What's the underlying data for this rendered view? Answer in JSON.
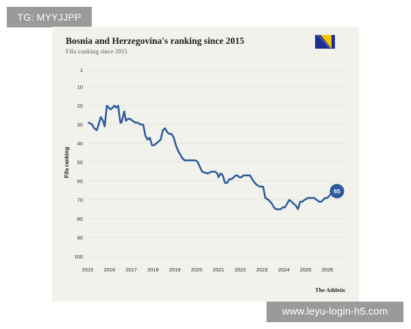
{
  "watermark_top": "TG: MYYJJPP",
  "watermark_bottom": "www.leyu-login-h5.com",
  "brand": "The Athletic",
  "colors": {
    "line": "#2c5a9a",
    "card": "#f2f2ec",
    "flag_blue": "#1f2e8c",
    "flag_yellow": "#f5c400"
  },
  "chart_data": {
    "type": "line",
    "title": "Bosnia and Herzegovina's ranking since 2015",
    "subtitle": "Fifa ranking since 2015",
    "xlabel": "",
    "ylabel": "Fifa ranking",
    "y_inverted": true,
    "ylim": [
      1,
      100
    ],
    "y_ticks": [
      1,
      10,
      20,
      30,
      40,
      50,
      60,
      70,
      80,
      90,
      100
    ],
    "x_ticks": [
      "2015",
      "2016",
      "2017",
      "2018",
      "2019",
      "2020",
      "2021",
      "2022",
      "2023",
      "2024",
      "2025",
      "2026"
    ],
    "xlim": [
      2015,
      2026.85
    ],
    "grid": "horizontal",
    "end_label": "65",
    "series": [
      {
        "x": [
          2015.05,
          2015.2,
          2015.3,
          2015.42,
          2015.5,
          2015.6,
          2015.7,
          2015.78,
          2015.88,
          2016.05,
          2016.15,
          2016.22,
          2016.3,
          2016.4,
          2016.5,
          2016.55,
          2016.68,
          2016.75,
          2016.85,
          2016.95,
          2017.05,
          2017.18,
          2017.3,
          2017.42,
          2017.55,
          2017.65,
          2017.75,
          2017.85,
          2017.95,
          2018.05,
          2018.15,
          2018.25,
          2018.35,
          2018.45,
          2018.55,
          2018.65,
          2018.75,
          2018.85,
          2018.95,
          2019.05,
          2019.15,
          2019.25,
          2019.35,
          2019.45,
          2019.55,
          2019.65,
          2019.75,
          2019.85,
          2019.95,
          2020.05,
          2020.25,
          2020.5,
          2020.7,
          2020.85,
          2020.95,
          2021.0,
          2021.1,
          2021.2,
          2021.3,
          2021.4,
          2021.5,
          2021.6,
          2021.7,
          2021.8,
          2021.88,
          2021.95,
          2022.05,
          2022.15,
          2022.3,
          2022.45,
          2022.6,
          2022.75,
          2022.9,
          2023.05,
          2023.15,
          2023.3,
          2023.45,
          2023.55,
          2023.65,
          2023.75,
          2023.85,
          2023.95,
          2024.05,
          2024.15,
          2024.25,
          2024.35,
          2024.45,
          2024.55,
          2024.65,
          2024.75,
          2024.85,
          2024.95,
          2025.1,
          2025.25,
          2025.4,
          2025.5,
          2025.62,
          2025.72,
          2025.8,
          2025.9,
          2026.0,
          2026.08,
          2026.15,
          2026.22
        ],
        "y": [
          29,
          30,
          32,
          33,
          30,
          26,
          28,
          31,
          20,
          22,
          21,
          20,
          21,
          20,
          29,
          29,
          23,
          28,
          27,
          27,
          28,
          29,
          29,
          30,
          30,
          36,
          38,
          37,
          41,
          41,
          40,
          39,
          38,
          33,
          32,
          34,
          35,
          35,
          37,
          41,
          44,
          46,
          48,
          49,
          49,
          49,
          49,
          49,
          49,
          50,
          55,
          56,
          55,
          55,
          56,
          58,
          56,
          57,
          61,
          61,
          59,
          59,
          58,
          57,
          57,
          58,
          58,
          57,
          57,
          57,
          60,
          62,
          63,
          63,
          69,
          70,
          72,
          74,
          75,
          75,
          75,
          74,
          74,
          72,
          70,
          71,
          72,
          73,
          75,
          71,
          71,
          70,
          69,
          69,
          69,
          70,
          71,
          71,
          70,
          69,
          69,
          68,
          67,
          65
        ]
      }
    ]
  }
}
